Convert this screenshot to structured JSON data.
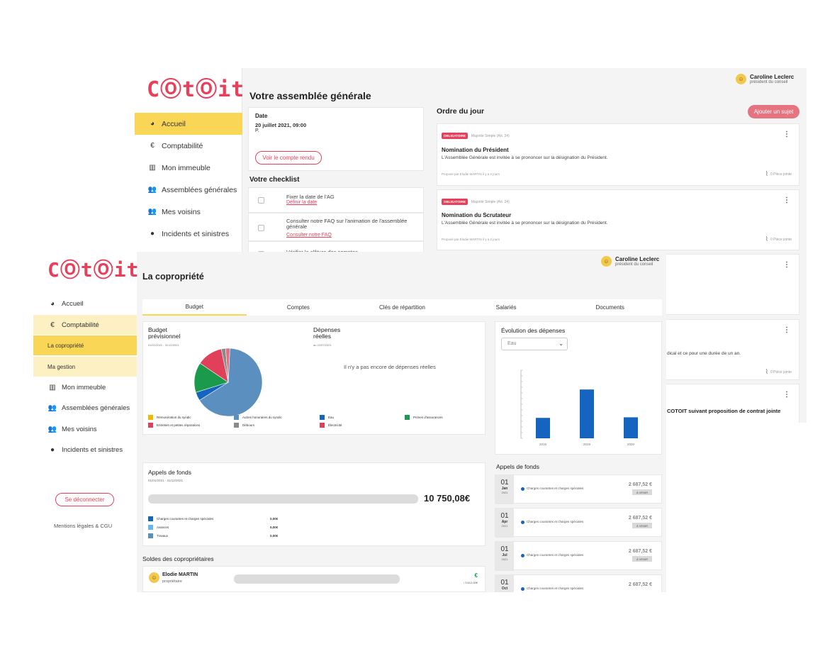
{
  "back": {
    "logo": "CⓄtⓄit",
    "nav": [
      {
        "label": "Accueil",
        "icon": "◕"
      },
      {
        "label": "Comptabilité",
        "icon": "€"
      },
      {
        "label": "Mon immeuble",
        "icon": "▥"
      },
      {
        "label": "Assemblées générales",
        "icon": "👥"
      },
      {
        "label": "Mes voisins",
        "icon": "👥"
      },
      {
        "label": "Incidents et sinistres",
        "icon": "●"
      }
    ],
    "user": {
      "name": "Caroline Leclerc",
      "role": "président du conseil"
    },
    "title": "Votre assemblée générale",
    "date_label": "Date",
    "date_value": "20 juillet 2021, 09:00",
    "date_extra": "P.",
    "report_button": "Voir le compte rendu",
    "checklist_title": "Votre checklist",
    "checklist": [
      {
        "text": "Fixer la date de l'AG",
        "link": "Définir la date"
      },
      {
        "text": "Consulter notre FAQ sur l'animation de l'assemblée générale",
        "link": "Consulter notre FAQ"
      },
      {
        "text": "Vérifier la clôture des comptes",
        "link": ""
      }
    ],
    "agenda_title": "Ordre du jour",
    "add_button": "Ajouter un sujet",
    "agenda": [
      {
        "tag": "OBLIGATOIRE",
        "majority": "Majorité Simple (Art. 24)",
        "title": "Nomination du Président",
        "desc": "L'Assemblée Générale est invitée à se prononcer sur la désignation du Président.",
        "by": "Proposé par Elodie MARTIN il y a 2 jours",
        "files": "0 Pièce jointe"
      },
      {
        "tag": "OBLIGATOIRE",
        "majority": "Majorité Simple (Art. 24)",
        "title": "Nomination du Scrutateur",
        "desc": "L'Assemblée Générale est invitée à se prononcer sur la désignation du Président.",
        "by": "Proposé par Elodie MARTIN il y a 2 jours",
        "files": "0 Pièce jointe"
      }
    ],
    "partial_text_1": "dical et ce pour une durée de un an.",
    "partial_files": "0 Pièce jointe",
    "partial_text_2": "COTOIT suivant proposition de contrat jointe"
  },
  "front": {
    "logo": "CⓄtⓄit",
    "user": {
      "name": "Caroline Leclerc",
      "role": "président du conseil"
    },
    "nav": [
      {
        "label": "Accueil",
        "icon": "◕"
      },
      {
        "label": "Comptabilité",
        "icon": "€"
      },
      {
        "label": "La copropriété",
        "icon": ""
      },
      {
        "label": "Ma gestion",
        "icon": ""
      },
      {
        "label": "Mon immeuble",
        "icon": "▥"
      },
      {
        "label": "Assemblées générales",
        "icon": "👥"
      },
      {
        "label": "Mes voisins",
        "icon": "👥"
      },
      {
        "label": "Incidents et sinistres",
        "icon": "●"
      }
    ],
    "logout": "Se déconnecter",
    "legal": "Mentions légales & CGU",
    "title": "La copropriété",
    "tabs": [
      "Budget",
      "Comptes",
      "Clés de répartition",
      "Salariés",
      "Documents"
    ],
    "budget": {
      "title": "Budget prévisionnel",
      "period": "01/01/2021 - 31/12/2021",
      "expenses_title": "Dépenses réelles",
      "expenses_date": "au 22/07/2021",
      "no_expenses": "Il n'y a pas encore de dépenses réelles",
      "legend": [
        {
          "label": "Rémunération du syndic",
          "color": "#f5b800"
        },
        {
          "label": "Autres honoraires du syndic",
          "color": "#5a8fbf"
        },
        {
          "label": "Eau",
          "color": "#1565c0"
        },
        {
          "label": "Primes d'assurances",
          "color": "#1b9a4b"
        },
        {
          "label": "Entretien et petites réparations",
          "color": "#e0405a"
        },
        {
          "label": "Débours",
          "color": "#8a8a8a"
        },
        {
          "label": "Électricité",
          "color": "#e0405a"
        }
      ]
    },
    "evolution": {
      "title": "Évolution des dépenses",
      "select": "Eau"
    },
    "calls": {
      "title": "Appels de fonds",
      "period": "01/01/2021 - 31/12/2021",
      "total": "10 750,08€",
      "rows": [
        {
          "label": "Charges courantes et charges spéciales",
          "value": "0,00€",
          "color": "#1565c0"
        },
        {
          "label": "Avances",
          "value": "0,00€",
          "color": "#64b5f6"
        },
        {
          "label": "Travaux",
          "value": "0,00€",
          "color": "#5a8fbf"
        }
      ]
    },
    "balances": {
      "title": "Soldes des copropriétaires",
      "owner": {
        "name": "Elodie MARTIN",
        "role": "propriétaire",
        "amount": "€",
        "sub": "/ 3 612,00€"
      }
    },
    "fund_calls": {
      "title": "Appels de fonds",
      "items": [
        {
          "day": "01",
          "month": "Jan",
          "year": "2021",
          "label": "Charges courantes et charges spéciales",
          "amount": "2 687,52 €",
          "status": "À VENIR"
        },
        {
          "day": "01",
          "month": "Apr",
          "year": "2021",
          "label": "Charges courantes et charges spéciales",
          "amount": "2 687,52 €",
          "status": "À VENIR"
        },
        {
          "day": "01",
          "month": "Jul",
          "year": "2021",
          "label": "Charges courantes et charges spéciales",
          "amount": "2 687,52 €",
          "status": "À VENIR"
        },
        {
          "day": "01",
          "month": "Oct",
          "year": "2021",
          "label": "Charges courantes et charges spéciales",
          "amount": "2 687,52 €",
          "status": ""
        }
      ]
    }
  },
  "chart_data": [
    {
      "type": "pie",
      "title": "Budget prévisionnel",
      "categories": [
        "Autres honoraires du syndic",
        "Eau",
        "Primes d'assurances",
        "Électricité",
        "Débours",
        "Entretien et petites réparations"
      ],
      "values": [
        64,
        4,
        14,
        12,
        2,
        2
      ],
      "colors": [
        "#5a8fbf",
        "#1565c0",
        "#1b9a4b",
        "#e0405a",
        "#8a8a8a",
        "#e07080"
      ]
    },
    {
      "type": "bar",
      "title": "Évolution des dépenses",
      "categories": [
        "2018",
        "2019",
        "2020"
      ],
      "values": [
        1800,
        4300,
        1850
      ],
      "ylim": [
        0,
        6000
      ],
      "color": "#1565c0"
    }
  ]
}
